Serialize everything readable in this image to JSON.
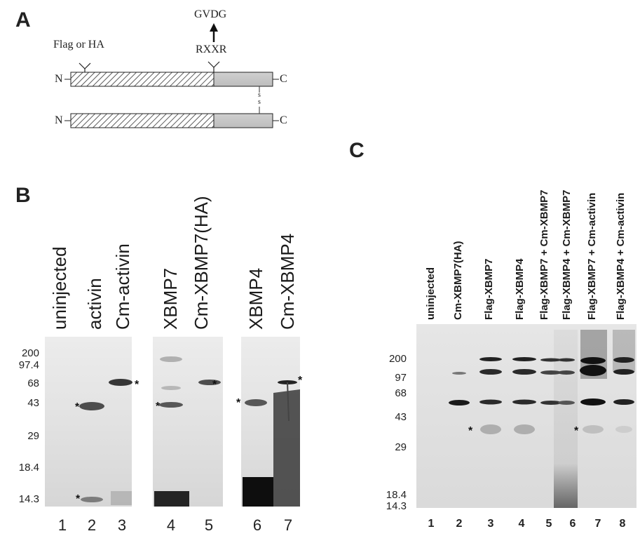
{
  "panels": {
    "a": "A",
    "b": "B",
    "c": "C"
  },
  "schematic": {
    "tag": "Flag or HA",
    "cleavage_site": "RXXR",
    "product": "GVDG",
    "n_term": "N",
    "c_term": "C",
    "disulfide": "s s"
  },
  "panel_b": {
    "lanes": [
      "uninjected",
      "activin",
      "Cm-activin",
      "XBMP7",
      "Cm-XBMP7(HA)",
      "XBMP4",
      "Cm-XBMP4"
    ],
    "lane_numbers": [
      "1",
      "2",
      "3",
      "4",
      "5",
      "6",
      "7"
    ],
    "markers": [
      "200",
      "97.4",
      "68",
      "43",
      "29",
      "18.4",
      "14.3"
    ],
    "asterisk": "*"
  },
  "panel_c": {
    "lanes": [
      "uninjected",
      "Cm-XBMP7(HA)",
      "Flag-XBMP7",
      "Flag-XBMP4",
      "Flag-XBMP7 + Cm-XBMP7",
      "Flag-XBMP4 + Cm-XBMP7",
      "Flag-XBMP7 + Cm-activin",
      "Flag-XBMP4 + Cm-activin"
    ],
    "lane_numbers": [
      "1",
      "2",
      "3",
      "4",
      "5",
      "6",
      "7",
      "8"
    ],
    "markers": [
      "200",
      "97",
      "68",
      "43",
      "29",
      "18.4",
      "14.3"
    ],
    "asterisk": "*"
  }
}
